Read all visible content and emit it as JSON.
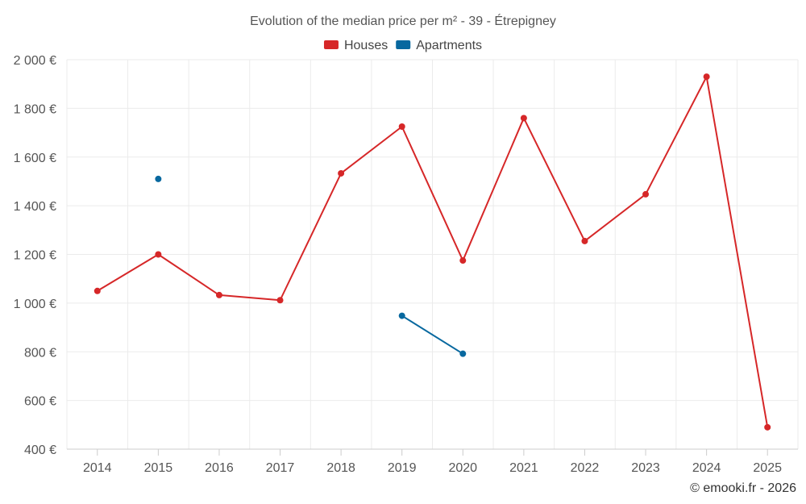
{
  "chart_data": {
    "type": "line",
    "title": "Evolution of the median price per m² - 39 - Étrepigney",
    "categories": [
      "2014",
      "2015",
      "2016",
      "2017",
      "2018",
      "2019",
      "2020",
      "2021",
      "2022",
      "2023",
      "2024",
      "2025"
    ],
    "y_ticks": [
      400,
      600,
      800,
      1000,
      1200,
      1400,
      1600,
      1800,
      2000
    ],
    "y_tick_labels": [
      "400 €",
      "600 €",
      "800 €",
      "1 000 €",
      "1 200 €",
      "1 400 €",
      "1 600 €",
      "1 800 €",
      "2 000 €"
    ],
    "ylim": [
      400,
      2000
    ],
    "grid": true,
    "legend_position": "top-center",
    "series": [
      {
        "name": "Houses",
        "color": "#d62728",
        "values": [
          1050,
          1200,
          1033,
          1012,
          1533,
          1725,
          1175,
          1760,
          1255,
          1447,
          1930,
          490
        ]
      },
      {
        "name": "Apartments",
        "color": "#08689f",
        "values": [
          null,
          1510,
          null,
          null,
          null,
          948,
          792,
          null,
          null,
          null,
          null,
          null
        ]
      }
    ],
    "credit": "© emooki.fr - 2026"
  }
}
